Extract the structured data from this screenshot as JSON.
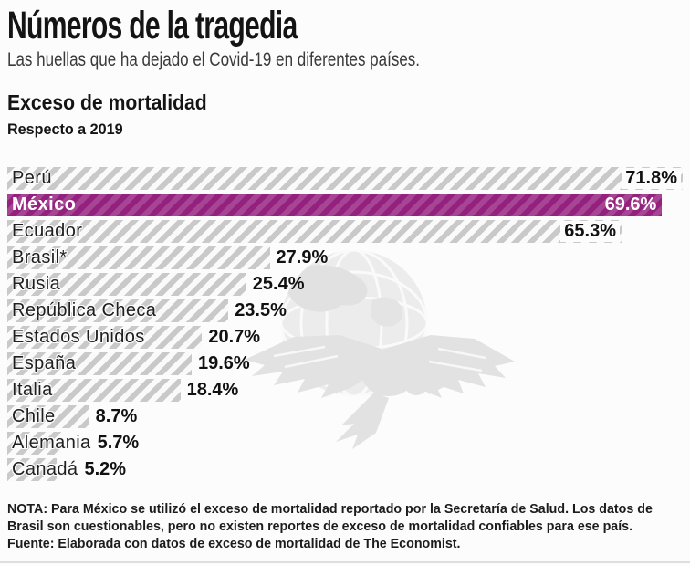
{
  "header": {
    "title": "Números de la tragedia",
    "subtitle": "Las huellas que ha dejado el Covid-19 en diferentes países."
  },
  "section": {
    "title": "Exceso de mortalidad",
    "subtitle": "Respecto a 2019"
  },
  "chart_data": {
    "type": "bar",
    "orientation": "horizontal",
    "title": "Exceso de mortalidad",
    "subtitle": "Respecto a 2019",
    "unit": "%",
    "xmax": 71.8,
    "bar_pattern": "diagonal-hatch",
    "hatch_color": "#c9c9c9",
    "highlight_color": "#95217f",
    "rows": [
      {
        "label": "Perú",
        "value": 71.8,
        "value_label": "71.8%",
        "highlight": false,
        "value_inside": true
      },
      {
        "label": "México",
        "value": 69.6,
        "value_label": "69.6%",
        "highlight": true,
        "value_inside": true
      },
      {
        "label": "Ecuador",
        "value": 65.3,
        "value_label": "65.3%",
        "highlight": false,
        "value_inside": true
      },
      {
        "label": "Brasil*",
        "value": 27.9,
        "value_label": "27.9%",
        "highlight": false,
        "value_inside": false
      },
      {
        "label": "Rusia",
        "value": 25.4,
        "value_label": "25.4%",
        "highlight": false,
        "value_inside": false
      },
      {
        "label": "República Checa",
        "value": 23.5,
        "value_label": "23.5%",
        "highlight": false,
        "value_inside": false
      },
      {
        "label": "Estados Unidos",
        "value": 20.7,
        "value_label": "20.7%",
        "highlight": false,
        "value_inside": false
      },
      {
        "label": "España",
        "value": 19.6,
        "value_label": "19.6%",
        "highlight": false,
        "value_inside": false
      },
      {
        "label": "Italia",
        "value": 18.4,
        "value_label": "18.4%",
        "highlight": false,
        "value_inside": false
      },
      {
        "label": "Chile",
        "value": 8.7,
        "value_label": "8.7%",
        "highlight": false,
        "value_inside": false
      },
      {
        "label": "Alemania",
        "value": 5.7,
        "value_label": "5.7%",
        "highlight": false,
        "value_inside": false
      },
      {
        "label": "Canadá",
        "value": 5.2,
        "value_label": "5.2%",
        "highlight": false,
        "value_inside": false
      }
    ]
  },
  "watermark": {
    "name": "eagle-globe-logo"
  },
  "note": {
    "lines": [
      "NOTA: Para México se utilizó el exceso de mortalidad reportado por la Secretaría de Salud. Los datos de",
      "Brasil son cuestionables, pero no existen reportes de exceso de mortalidad confiables para ese país.",
      "Fuente: Elaborada con datos de exceso de mortalidad de The Economist."
    ]
  }
}
